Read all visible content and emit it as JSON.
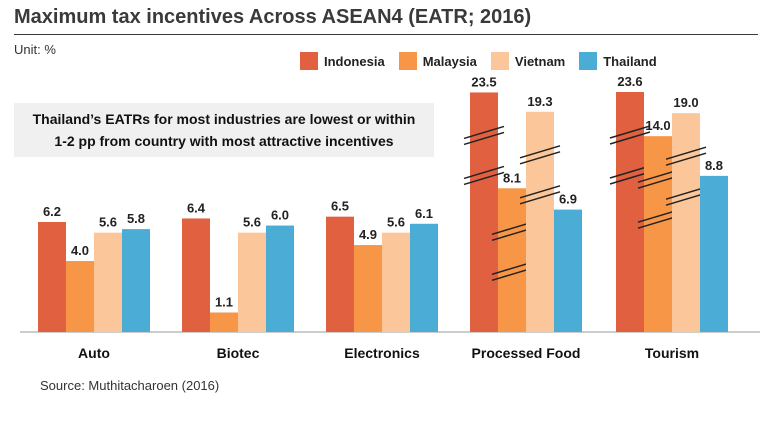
{
  "header": {
    "title": "Maximum tax incentives Across ASEAN4 (EATR; 2016)",
    "unit": "Unit: %"
  },
  "callout": {
    "line1": "Thailand’s EATRs for most industries are lowest or within",
    "line2": "1-2 pp from country with most attractive incentives"
  },
  "source": "Source: Muthitacharoen (2016)",
  "colors": {
    "Indonesia": "#E06040",
    "Malaysia": "#F79646",
    "Vietnam": "#FBC79A",
    "Thailand": "#4BACD6"
  },
  "chart_data": {
    "type": "bar",
    "title": "Maximum tax incentives Across ASEAN4 (EATR; 2016)",
    "ylabel": "Unit: %",
    "categories": [
      "Auto",
      "Biotec",
      "Electronics",
      "Processed Food",
      "Tourism"
    ],
    "series": [
      {
        "name": "Indonesia",
        "values": [
          6.2,
          6.4,
          6.5,
          23.5,
          23.6
        ],
        "labels": [
          "6.2",
          "6.4",
          "6.5",
          "23.5",
          "23.6"
        ]
      },
      {
        "name": "Malaysia",
        "values": [
          4.0,
          1.1,
          4.9,
          8.1,
          14.0
        ],
        "labels": [
          "4.0",
          "1.1",
          "4.9",
          "8.1",
          "14.0"
        ]
      },
      {
        "name": "Vietnam",
        "values": [
          5.6,
          5.6,
          5.6,
          19.3,
          19.0
        ],
        "labels": [
          "5.6",
          "5.6",
          "5.6",
          "19.3",
          "19.0"
        ]
      },
      {
        "name": "Thailand",
        "values": [
          5.8,
          6.0,
          6.1,
          6.9,
          8.8
        ],
        "labels": [
          "5.8",
          "6.0",
          "6.1",
          "6.9",
          "8.8"
        ]
      }
    ],
    "axis_break": {
      "enabled": true,
      "categories": [
        "Processed Food",
        "Tourism"
      ],
      "series": [
        "Indonesia",
        "Malaysia",
        "Vietnam"
      ]
    },
    "legend": "top-right",
    "grid": false
  }
}
